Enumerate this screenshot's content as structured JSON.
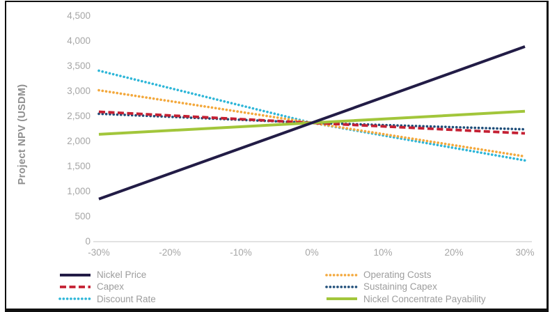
{
  "chart_data": {
    "type": "line",
    "ylabel": "Project NPV (USDM)",
    "x": [
      -30,
      0,
      30
    ],
    "x_unit": "percent",
    "ylim": [
      0,
      4500
    ],
    "grid": false,
    "legend_position": "bottom",
    "xticks": [
      {
        "value": -30,
        "label": "-30%"
      },
      {
        "value": -20,
        "label": "-20%"
      },
      {
        "value": -10,
        "label": "-10%"
      },
      {
        "value": 0,
        "label": "0%"
      },
      {
        "value": 10,
        "label": "10%"
      },
      {
        "value": 20,
        "label": "20%"
      },
      {
        "value": 30,
        "label": "30%"
      }
    ],
    "yticks": [
      {
        "value": 0,
        "label": "0"
      },
      {
        "value": 500,
        "label": "500"
      },
      {
        "value": 1000,
        "label": "1,000"
      },
      {
        "value": 1500,
        "label": "1,500"
      },
      {
        "value": 2000,
        "label": "2,000"
      },
      {
        "value": 2500,
        "label": "2,500"
      },
      {
        "value": 3000,
        "label": "3,000"
      },
      {
        "value": 3500,
        "label": "3,500"
      },
      {
        "value": 4000,
        "label": "4,000"
      },
      {
        "value": 4500,
        "label": "4,500"
      }
    ],
    "series": [
      {
        "name": "Nickel Price",
        "color": "#221c46",
        "style": "solid",
        "values": [
          850,
          2370,
          3890
        ]
      },
      {
        "name": "Operating Costs",
        "color": "#f3a83c",
        "style": "dotted",
        "values": [
          3020,
          2370,
          1700
        ]
      },
      {
        "name": "Capex",
        "color": "#c42033",
        "style": "dashed",
        "values": [
          2590,
          2370,
          2160
        ]
      },
      {
        "name": "Sustaining Capex",
        "color": "#1f4e79",
        "style": "dotted",
        "values": [
          2550,
          2370,
          2240
        ]
      },
      {
        "name": "Discount Rate",
        "color": "#2eb6d8",
        "style": "dotted",
        "values": [
          3410,
          2370,
          1620
        ]
      },
      {
        "name": "Nickel Concentrate Payability",
        "color": "#a2c63b",
        "style": "solid",
        "values": [
          2140,
          2370,
          2600
        ]
      }
    ],
    "draw_order": [
      "Discount Rate",
      "Operating Costs",
      "Sustaining Capex",
      "Capex",
      "Nickel Concentrate Payability",
      "Nickel Price"
    ],
    "legend_columns": [
      [
        "Nickel Price",
        "Capex",
        "Discount Rate"
      ],
      [
        "Operating Costs",
        "Sustaining Capex",
        "Nickel Concentrate Payability"
      ]
    ],
    "axis_line_color": "#d9d9d9",
    "base_value": 2370
  }
}
